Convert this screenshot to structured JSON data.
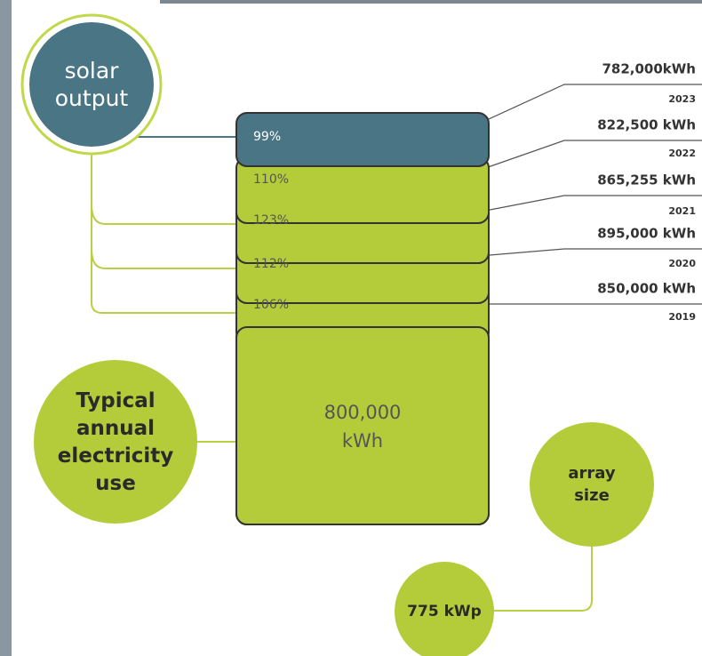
{
  "solar_output": {
    "label": "solar output"
  },
  "years": [
    {
      "percent": "99%",
      "kwh": "782,000kWh",
      "year": "2023"
    },
    {
      "percent": "110%",
      "kwh": "822,500 kWh",
      "year": "2022"
    },
    {
      "percent": "123%",
      "kwh": "865,255 kWh",
      "year": "2021"
    },
    {
      "percent": "112%",
      "kwh": "895,000 kWh",
      "year": "2020"
    },
    {
      "percent": "106%",
      "kwh": "850,000 kWh",
      "year": "2019"
    }
  ],
  "typical_use": {
    "label": "Typical annual electricity use",
    "value": "800,000 kWh"
  },
  "array": {
    "label": "array size",
    "value": "775 kWp"
  }
}
